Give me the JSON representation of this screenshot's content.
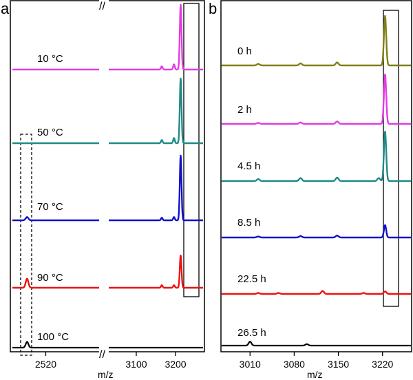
{
  "chart_data": [
    {
      "panel": "a",
      "type": "line",
      "xlabel": "m/z",
      "x_axis_broken": true,
      "x_segments": [
        {
          "range": [
            2470,
            2600
          ],
          "ticks": [
            2520
          ]
        },
        {
          "range": [
            3030,
            3270
          ],
          "ticks": [
            3100,
            3200
          ]
        }
      ],
      "series": [
        {
          "name": "10 °C",
          "color": "#e33be3",
          "peaks": [
            {
              "x": 3165,
              "h": 0.05
            },
            {
              "x": 3196,
              "h": 0.08
            },
            {
              "x": 3213,
              "h": 1.0
            }
          ]
        },
        {
          "name": "50 °C",
          "color": "#1f8a86",
          "peaks": [
            {
              "x": 3165,
              "h": 0.05
            },
            {
              "x": 3196,
              "h": 0.08
            },
            {
              "x": 3213,
              "h": 1.0
            }
          ]
        },
        {
          "name": "70 °C",
          "color": "#1010cc",
          "peaks": [
            {
              "x": 2492,
              "h": 0.05
            },
            {
              "x": 3165,
              "h": 0.04
            },
            {
              "x": 3196,
              "h": 0.05
            },
            {
              "x": 3213,
              "h": 1.0
            }
          ]
        },
        {
          "name": "90 °C",
          "color": "#ee1111",
          "peaks": [
            {
              "x": 2492,
              "h": 0.14
            },
            {
              "x": 3165,
              "h": 0.04
            },
            {
              "x": 3196,
              "h": 0.04
            },
            {
              "x": 3213,
              "h": 0.5
            }
          ]
        },
        {
          "name": "100 °C",
          "color": "#000000",
          "peaks": [
            {
              "x": 2492,
              "h": 0.09
            }
          ]
        }
      ],
      "highlight_boxes": [
        "solid box around peak near m/z 3213",
        "dashed box around peak near m/z 2492"
      ]
    },
    {
      "panel": "b",
      "type": "line",
      "xlabel": "m/z",
      "xlim": [
        2965,
        3265
      ],
      "xticks": [
        3010,
        3080,
        3150,
        3220
      ],
      "series": [
        {
          "name": "0 h",
          "color": "#7f7f17",
          "peaks": [
            {
              "x": 3023,
              "h": 0.03
            },
            {
              "x": 3090,
              "h": 0.04
            },
            {
              "x": 3148,
              "h": 0.06
            },
            {
              "x": 3224,
              "h": 1.0
            }
          ]
        },
        {
          "name": "2 h",
          "color": "#e33be3",
          "peaks": [
            {
              "x": 3023,
              "h": 0.02
            },
            {
              "x": 3090,
              "h": 0.03
            },
            {
              "x": 3148,
              "h": 0.05
            },
            {
              "x": 3224,
              "h": 1.0
            }
          ]
        },
        {
          "name": "4.5 h",
          "color": "#1f8a86",
          "peaks": [
            {
              "x": 3023,
              "h": 0.04
            },
            {
              "x": 3090,
              "h": 0.06
            },
            {
              "x": 3148,
              "h": 0.07
            },
            {
              "x": 3214,
              "h": 0.06
            },
            {
              "x": 3224,
              "h": 1.0
            }
          ]
        },
        {
          "name": "8.5 h",
          "color": "#1010cc",
          "peaks": [
            {
              "x": 3023,
              "h": 0.02
            },
            {
              "x": 3090,
              "h": 0.03
            },
            {
              "x": 3148,
              "h": 0.04
            },
            {
              "x": 3224,
              "h": 0.25
            }
          ]
        },
        {
          "name": "22.5 h",
          "color": "#ee1111",
          "peaks": [
            {
              "x": 3023,
              "h": 0.02
            },
            {
              "x": 3055,
              "h": 0.02
            },
            {
              "x": 3125,
              "h": 0.06
            },
            {
              "x": 3190,
              "h": 0.02
            },
            {
              "x": 3224,
              "h": 0.05
            }
          ]
        },
        {
          "name": "26.5 h",
          "color": "#000000",
          "peaks": [
            {
              "x": 3010,
              "h": 0.08
            },
            {
              "x": 3100,
              "h": 0.03
            }
          ]
        }
      ],
      "highlight_boxes": [
        "solid box around peak near m/z 3224"
      ]
    }
  ],
  "labels": {
    "panel_a": "a",
    "panel_b": "b"
  },
  "axis_break_mark": "//"
}
